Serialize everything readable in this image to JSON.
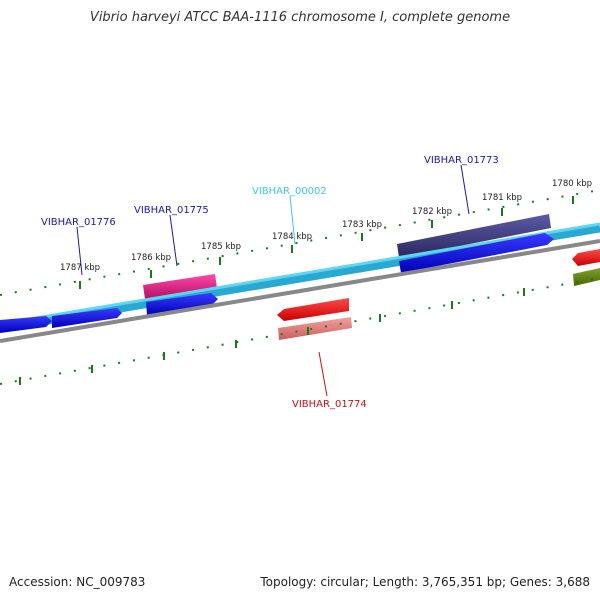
{
  "title": "Vibrio harveyi ATCC BAA-1116 chromosome I, complete genome",
  "footer": {
    "accession": "Accession: NC_009783",
    "summary": "Topology: circular; Length: 3,765,351 bp; Genes: 3,688"
  },
  "kbp_labels": [
    "1787 kbp",
    "1786 kbp",
    "1785 kbp",
    "1784 kbp",
    "1783 kbp",
    "1782 kbp",
    "1781 kbp",
    "1780 kbp"
  ],
  "genes": {
    "vibhar_01776": {
      "label": "VIBHAR_01776",
      "color": "#1a1aa6"
    },
    "vibhar_01775": {
      "label": "VIBHAR_01775",
      "color": "#1a1aa6"
    },
    "vibhar_00002": {
      "label": "VIBHAR_00002",
      "color": "#3cc8e6"
    },
    "vibhar_01773": {
      "label": "VIBHAR_01773",
      "color": "#1a1aa6"
    },
    "vibhar_01774": {
      "label": "VIBHAR_01774",
      "color": "#cc1111"
    }
  },
  "colors": {
    "backbone": "#29a9cf",
    "backbone_light": "#5fd4f5",
    "cds_forward": "#0a0ae6",
    "gray_track": "#888888",
    "tick": "#1a7a1a",
    "trna": "#e0157f",
    "rrna": "#3c3a82",
    "cds_reverse": "#ee1111",
    "cds_reverse_light": "#e87d7d",
    "olive": "#5a7a10"
  }
}
